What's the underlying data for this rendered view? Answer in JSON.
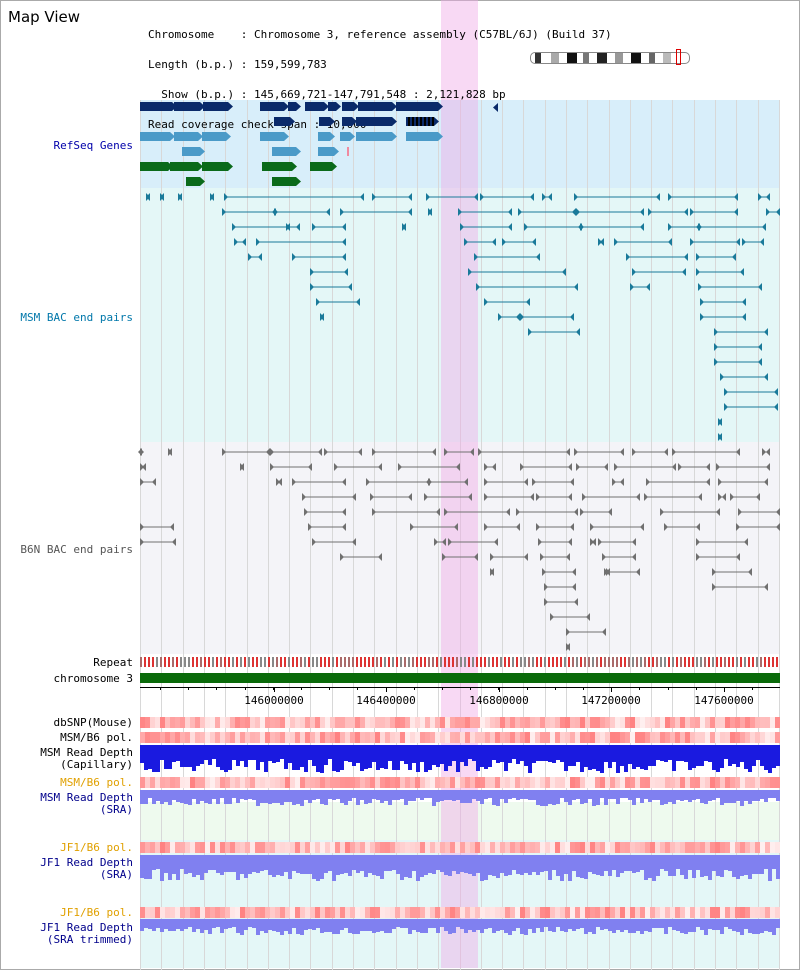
{
  "view_title": "Map View",
  "info": {
    "line1": "Chromosome    : Chromosome 3, reference assembly (C57BL/6J) (Build 37)",
    "line2": "Length (b.p.) : 159,599,783",
    "line3": "  Show (b.p.) : 145,669,721-147,791,548 : 2,121,828 bp",
    "line4": "Read coverage check span : 10,000"
  },
  "tracks": {
    "refseq": "RefSeq Genes",
    "msm_bac": "MSM BAC end pairs",
    "b6n_bac": "B6N BAC end pairs",
    "repeat": "Repeat",
    "chromosome": "chromosome 3",
    "dbsnp": "dbSNP(Mouse)",
    "msm_b6_pol_1": "MSM/B6 pol.",
    "msm_depth_cap_1": "MSM Read Depth",
    "msm_depth_cap_2": "(Capillary)",
    "msm_b6_pol_2": "MSM/B6 pol.",
    "msm_depth_sra_1": "MSM Read Depth",
    "msm_depth_sra_2": "(SRA)",
    "jf1_b6_pol_1": "JF1/B6 pol.",
    "jf1_depth_sra_1": "JF1 Read Depth",
    "jf1_depth_sra_2": "(SRA)",
    "jf1_b6_pol_2": "JF1/B6 pol.",
    "jf1_depth_trim_1": "JF1 Read Depth",
    "jf1_depth_trim_2": "(SRA trimmed)"
  },
  "axis": {
    "ticks": [
      "146000000",
      "146400000",
      "146800000",
      "147200000",
      "147600000"
    ]
  },
  "colors": {
    "refseq_bg": "#d8eefa",
    "bac_bg": "#e4f7f7",
    "b6n_bg": "#f4f4f8",
    "highlight": "#f5c6ef",
    "chromosome": "#0a6a0a",
    "msm_pair": "#1a7a9a",
    "b6n_pair": "#707070",
    "depth_dark": "#1a1ae0",
    "depth_light": "#8080f0"
  }
}
